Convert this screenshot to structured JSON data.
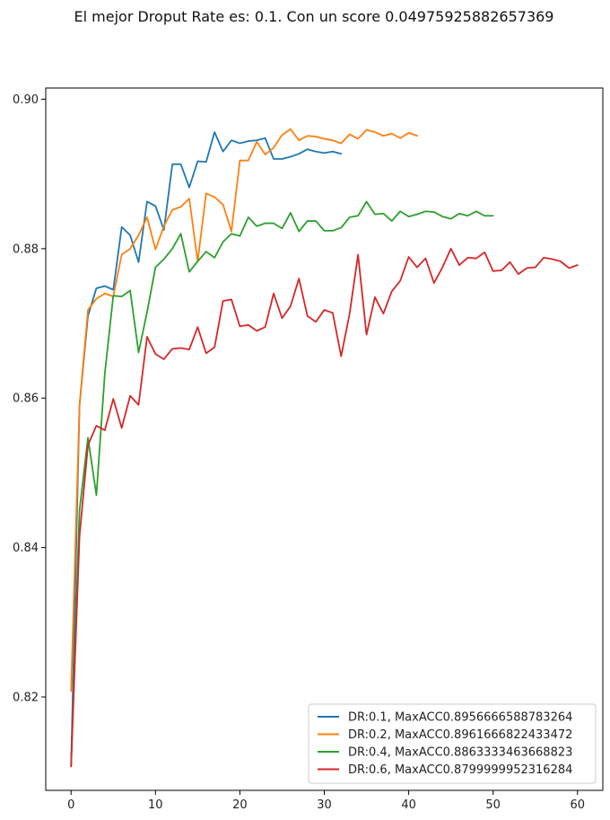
{
  "chart_data": {
    "type": "line",
    "title": "El mejor Droput Rate es: 0.1. Con un score 0.04975925882657369",
    "xlabel": "",
    "ylabel": "",
    "xlim": [
      -3,
      63
    ],
    "ylim": [
      0.8075,
      0.9015
    ],
    "x_ticks": [
      0,
      10,
      20,
      30,
      40,
      50,
      60
    ],
    "y_ticks": [
      0.82,
      0.84,
      0.86,
      0.88,
      0.9
    ],
    "y_tick_labels": [
      "0.82",
      "0.84",
      "0.86",
      "0.88",
      "0.90"
    ],
    "grid": false,
    "legend_position": "lower-right",
    "series": [
      {
        "name": "DR:0.1, MaxACC0.8956666588783264",
        "color": "#1f77b4",
        "values": [
          0.8107,
          0.859,
          0.871,
          0.8747,
          0.875,
          0.8745,
          0.8829,
          0.8818,
          0.8782,
          0.8863,
          0.8857,
          0.8825,
          0.8913,
          0.8913,
          0.8882,
          0.8917,
          0.8916,
          0.8956,
          0.893,
          0.8945,
          0.8941,
          0.8944,
          0.8945,
          0.8948,
          0.892,
          0.892,
          0.8923,
          0.8927,
          0.8933,
          0.893,
          0.8928,
          0.893,
          0.8927
        ]
      },
      {
        "name": "DR:0.2, MaxACC0.8961666822433472",
        "color": "#ff7f0e",
        "values": [
          0.8208,
          0.859,
          0.8718,
          0.8733,
          0.874,
          0.8736,
          0.8792,
          0.88,
          0.8818,
          0.8842,
          0.8799,
          0.883,
          0.8852,
          0.8856,
          0.8867,
          0.8783,
          0.8874,
          0.8869,
          0.8859,
          0.8823,
          0.8918,
          0.8918,
          0.8943,
          0.8926,
          0.8935,
          0.8952,
          0.896,
          0.8945,
          0.8951,
          0.895,
          0.8947,
          0.8945,
          0.8941,
          0.8953,
          0.8947,
          0.8959,
          0.8956,
          0.8951,
          0.8954,
          0.8948,
          0.8955,
          0.8951
        ]
      },
      {
        "name": "DR:0.4, MaxACC0.8863333463668823",
        "color": "#2ca02c",
        "values": [
          0.8107,
          0.845,
          0.8547,
          0.847,
          0.8633,
          0.8737,
          0.8736,
          0.8744,
          0.8661,
          0.8715,
          0.8775,
          0.8786,
          0.88,
          0.882,
          0.8769,
          0.8783,
          0.8796,
          0.8788,
          0.8809,
          0.882,
          0.8817,
          0.8842,
          0.883,
          0.8834,
          0.8834,
          0.8827,
          0.8848,
          0.8823,
          0.8837,
          0.8837,
          0.8824,
          0.8824,
          0.8828,
          0.8842,
          0.8844,
          0.8863,
          0.8846,
          0.8847,
          0.8837,
          0.885,
          0.8843,
          0.8846,
          0.885,
          0.8849,
          0.8843,
          0.884,
          0.8847,
          0.8844,
          0.885,
          0.8844,
          0.8844
        ]
      },
      {
        "name": "DR:0.6, MaxACC0.8799999952316284",
        "color": "#d62728",
        "values": [
          0.8107,
          0.8415,
          0.8537,
          0.8563,
          0.8557,
          0.8599,
          0.856,
          0.8603,
          0.8591,
          0.8682,
          0.8659,
          0.8652,
          0.8666,
          0.8667,
          0.8665,
          0.8695,
          0.866,
          0.8668,
          0.873,
          0.8732,
          0.8696,
          0.8698,
          0.869,
          0.8695,
          0.874,
          0.8707,
          0.8723,
          0.876,
          0.871,
          0.8702,
          0.8718,
          0.8714,
          0.8656,
          0.8713,
          0.8792,
          0.8685,
          0.8735,
          0.8713,
          0.8743,
          0.8757,
          0.8789,
          0.8775,
          0.8787,
          0.8754,
          0.8775,
          0.88,
          0.8778,
          0.8788,
          0.8787,
          0.8795,
          0.877,
          0.8771,
          0.8782,
          0.8766,
          0.8774,
          0.8775,
          0.8788,
          0.8786,
          0.8783,
          0.8774,
          0.8778
        ]
      }
    ]
  }
}
